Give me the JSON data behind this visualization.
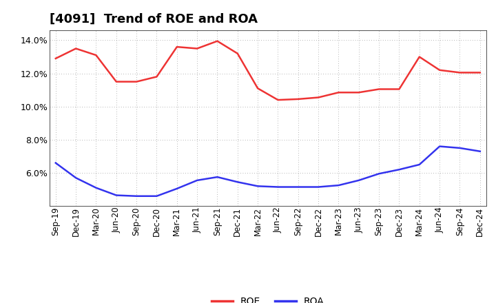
{
  "title": "[4091]  Trend of ROE and ROA",
  "x_labels": [
    "Sep-19",
    "Dec-19",
    "Mar-20",
    "Jun-20",
    "Sep-20",
    "Dec-20",
    "Mar-21",
    "Jun-21",
    "Sep-21",
    "Dec-21",
    "Mar-22",
    "Jun-22",
    "Sep-22",
    "Dec-22",
    "Mar-23",
    "Jun-23",
    "Sep-23",
    "Dec-23",
    "Mar-24",
    "Jun-24",
    "Sep-24",
    "Dec-24"
  ],
  "roe": [
    12.9,
    13.5,
    13.1,
    11.5,
    11.5,
    11.8,
    13.6,
    13.5,
    13.95,
    13.2,
    11.1,
    10.4,
    10.45,
    10.55,
    10.85,
    10.85,
    11.05,
    11.05,
    13.0,
    12.2,
    12.05,
    12.05
  ],
  "roa": [
    6.6,
    5.7,
    5.1,
    4.65,
    4.6,
    4.6,
    5.05,
    5.55,
    5.75,
    5.45,
    5.2,
    5.15,
    5.15,
    5.15,
    5.25,
    5.55,
    5.95,
    6.2,
    6.5,
    7.6,
    7.5,
    7.3
  ],
  "roe_color": "#ee3333",
  "roa_color": "#3333ee",
  "background_color": "#ffffff",
  "grid_color": "#999999",
  "ylim_min": 4.0,
  "ylim_max": 14.6,
  "yticks": [
    6.0,
    8.0,
    10.0,
    12.0,
    14.0
  ],
  "legend_roe": "ROE",
  "legend_roa": "ROA",
  "title_fontsize": 13,
  "tick_fontsize": 8.5,
  "ytick_fontsize": 9
}
